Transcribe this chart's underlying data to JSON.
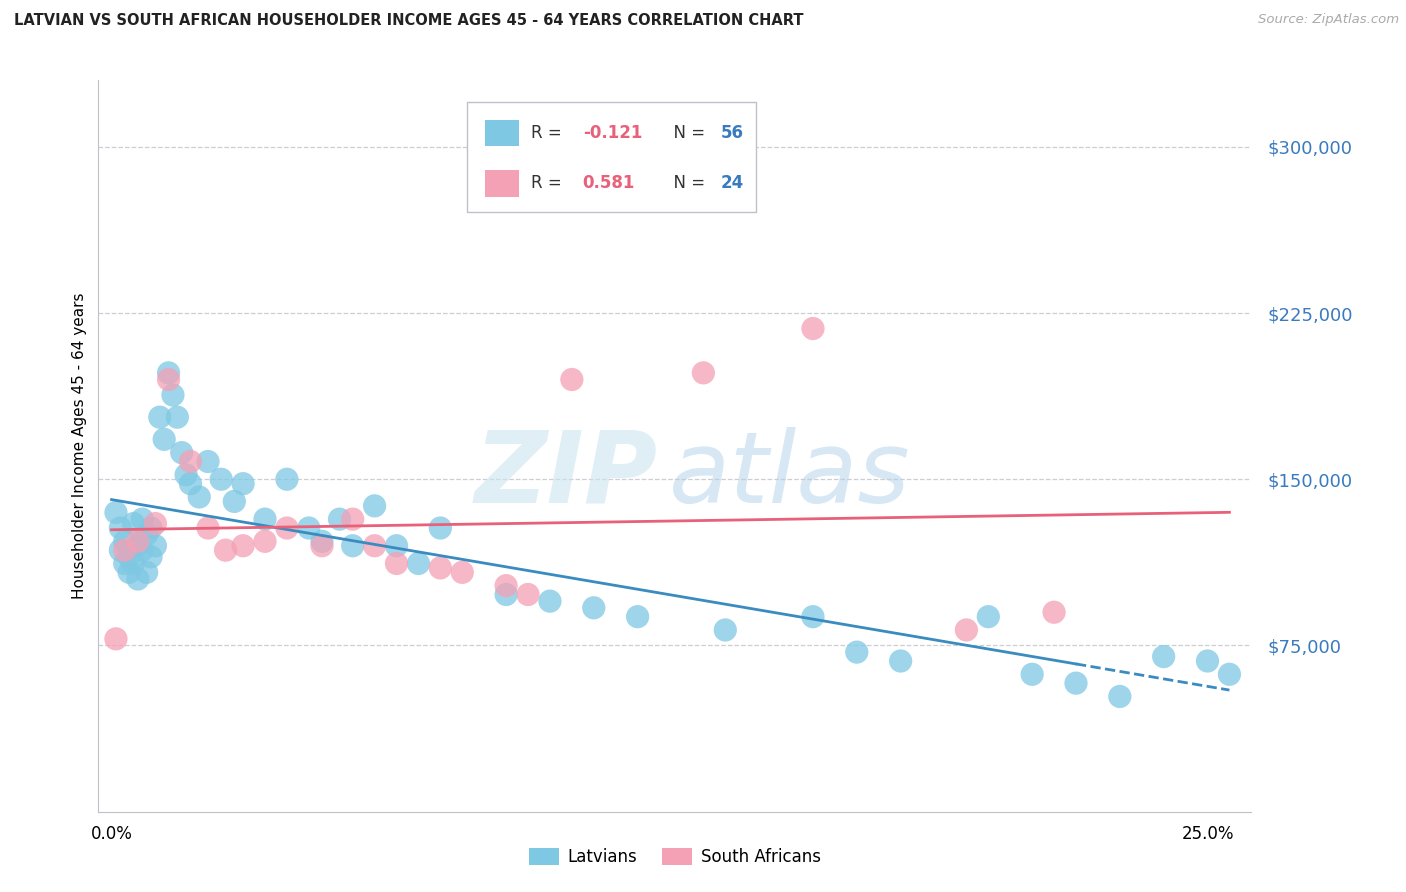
{
  "title": "LATVIAN VS SOUTH AFRICAN HOUSEHOLDER INCOME AGES 45 - 64 YEARS CORRELATION CHART",
  "source": "Source: ZipAtlas.com",
  "ylabel": "Householder Income Ages 45 - 64 years",
  "ytick_values": [
    75000,
    150000,
    225000,
    300000
  ],
  "ytick_labels": [
    "$75,000",
    "$150,000",
    "$225,000",
    "$300,000"
  ],
  "ymin": 0,
  "ymax": 330000,
  "xmin": -0.003,
  "xmax": 0.26,
  "latvian_color": "#7ec8e3",
  "sa_color": "#f4a0b5",
  "latvian_line_color": "#3a8bbf",
  "sa_line_color": "#e8607a",
  "lv_x": [
    0.001,
    0.002,
    0.002,
    0.003,
    0.003,
    0.004,
    0.004,
    0.005,
    0.005,
    0.006,
    0.006,
    0.007,
    0.007,
    0.008,
    0.008,
    0.009,
    0.009,
    0.01,
    0.01,
    0.011,
    0.012,
    0.013,
    0.014,
    0.015,
    0.016,
    0.017,
    0.018,
    0.02,
    0.022,
    0.024,
    0.026,
    0.028,
    0.03,
    0.032,
    0.035,
    0.038,
    0.04,
    0.045,
    0.048,
    0.052,
    0.06,
    0.065,
    0.07,
    0.075,
    0.09,
    0.1,
    0.11,
    0.12,
    0.14,
    0.16,
    0.17,
    0.18,
    0.2,
    0.21,
    0.23,
    0.25
  ],
  "lv_y": [
    130000,
    125000,
    120000,
    118000,
    115000,
    112000,
    108000,
    125000,
    110000,
    118000,
    105000,
    130000,
    115000,
    122000,
    108000,
    125000,
    112000,
    118000,
    105000,
    175000,
    165000,
    195000,
    190000,
    175000,
    160000,
    150000,
    145000,
    140000,
    155000,
    148000,
    142000,
    138000,
    145000,
    135000,
    128000,
    130000,
    148000,
    125000,
    120000,
    130000,
    135000,
    118000,
    110000,
    125000,
    95000,
    92000,
    90000,
    85000,
    80000,
    85000,
    70000,
    65000,
    85000,
    60000,
    55000,
    65000
  ],
  "sa_x": [
    0.001,
    0.004,
    0.007,
    0.01,
    0.013,
    0.018,
    0.022,
    0.026,
    0.03,
    0.035,
    0.04,
    0.048,
    0.055,
    0.06,
    0.068,
    0.075,
    0.08,
    0.09,
    0.095,
    0.105,
    0.135,
    0.16,
    0.195,
    0.215
  ],
  "sa_y": [
    78000,
    118000,
    120000,
    128000,
    190000,
    155000,
    125000,
    115000,
    118000,
    120000,
    125000,
    118000,
    130000,
    118000,
    110000,
    108000,
    105000,
    100000,
    95000,
    192000,
    195000,
    215000,
    80000,
    88000
  ]
}
